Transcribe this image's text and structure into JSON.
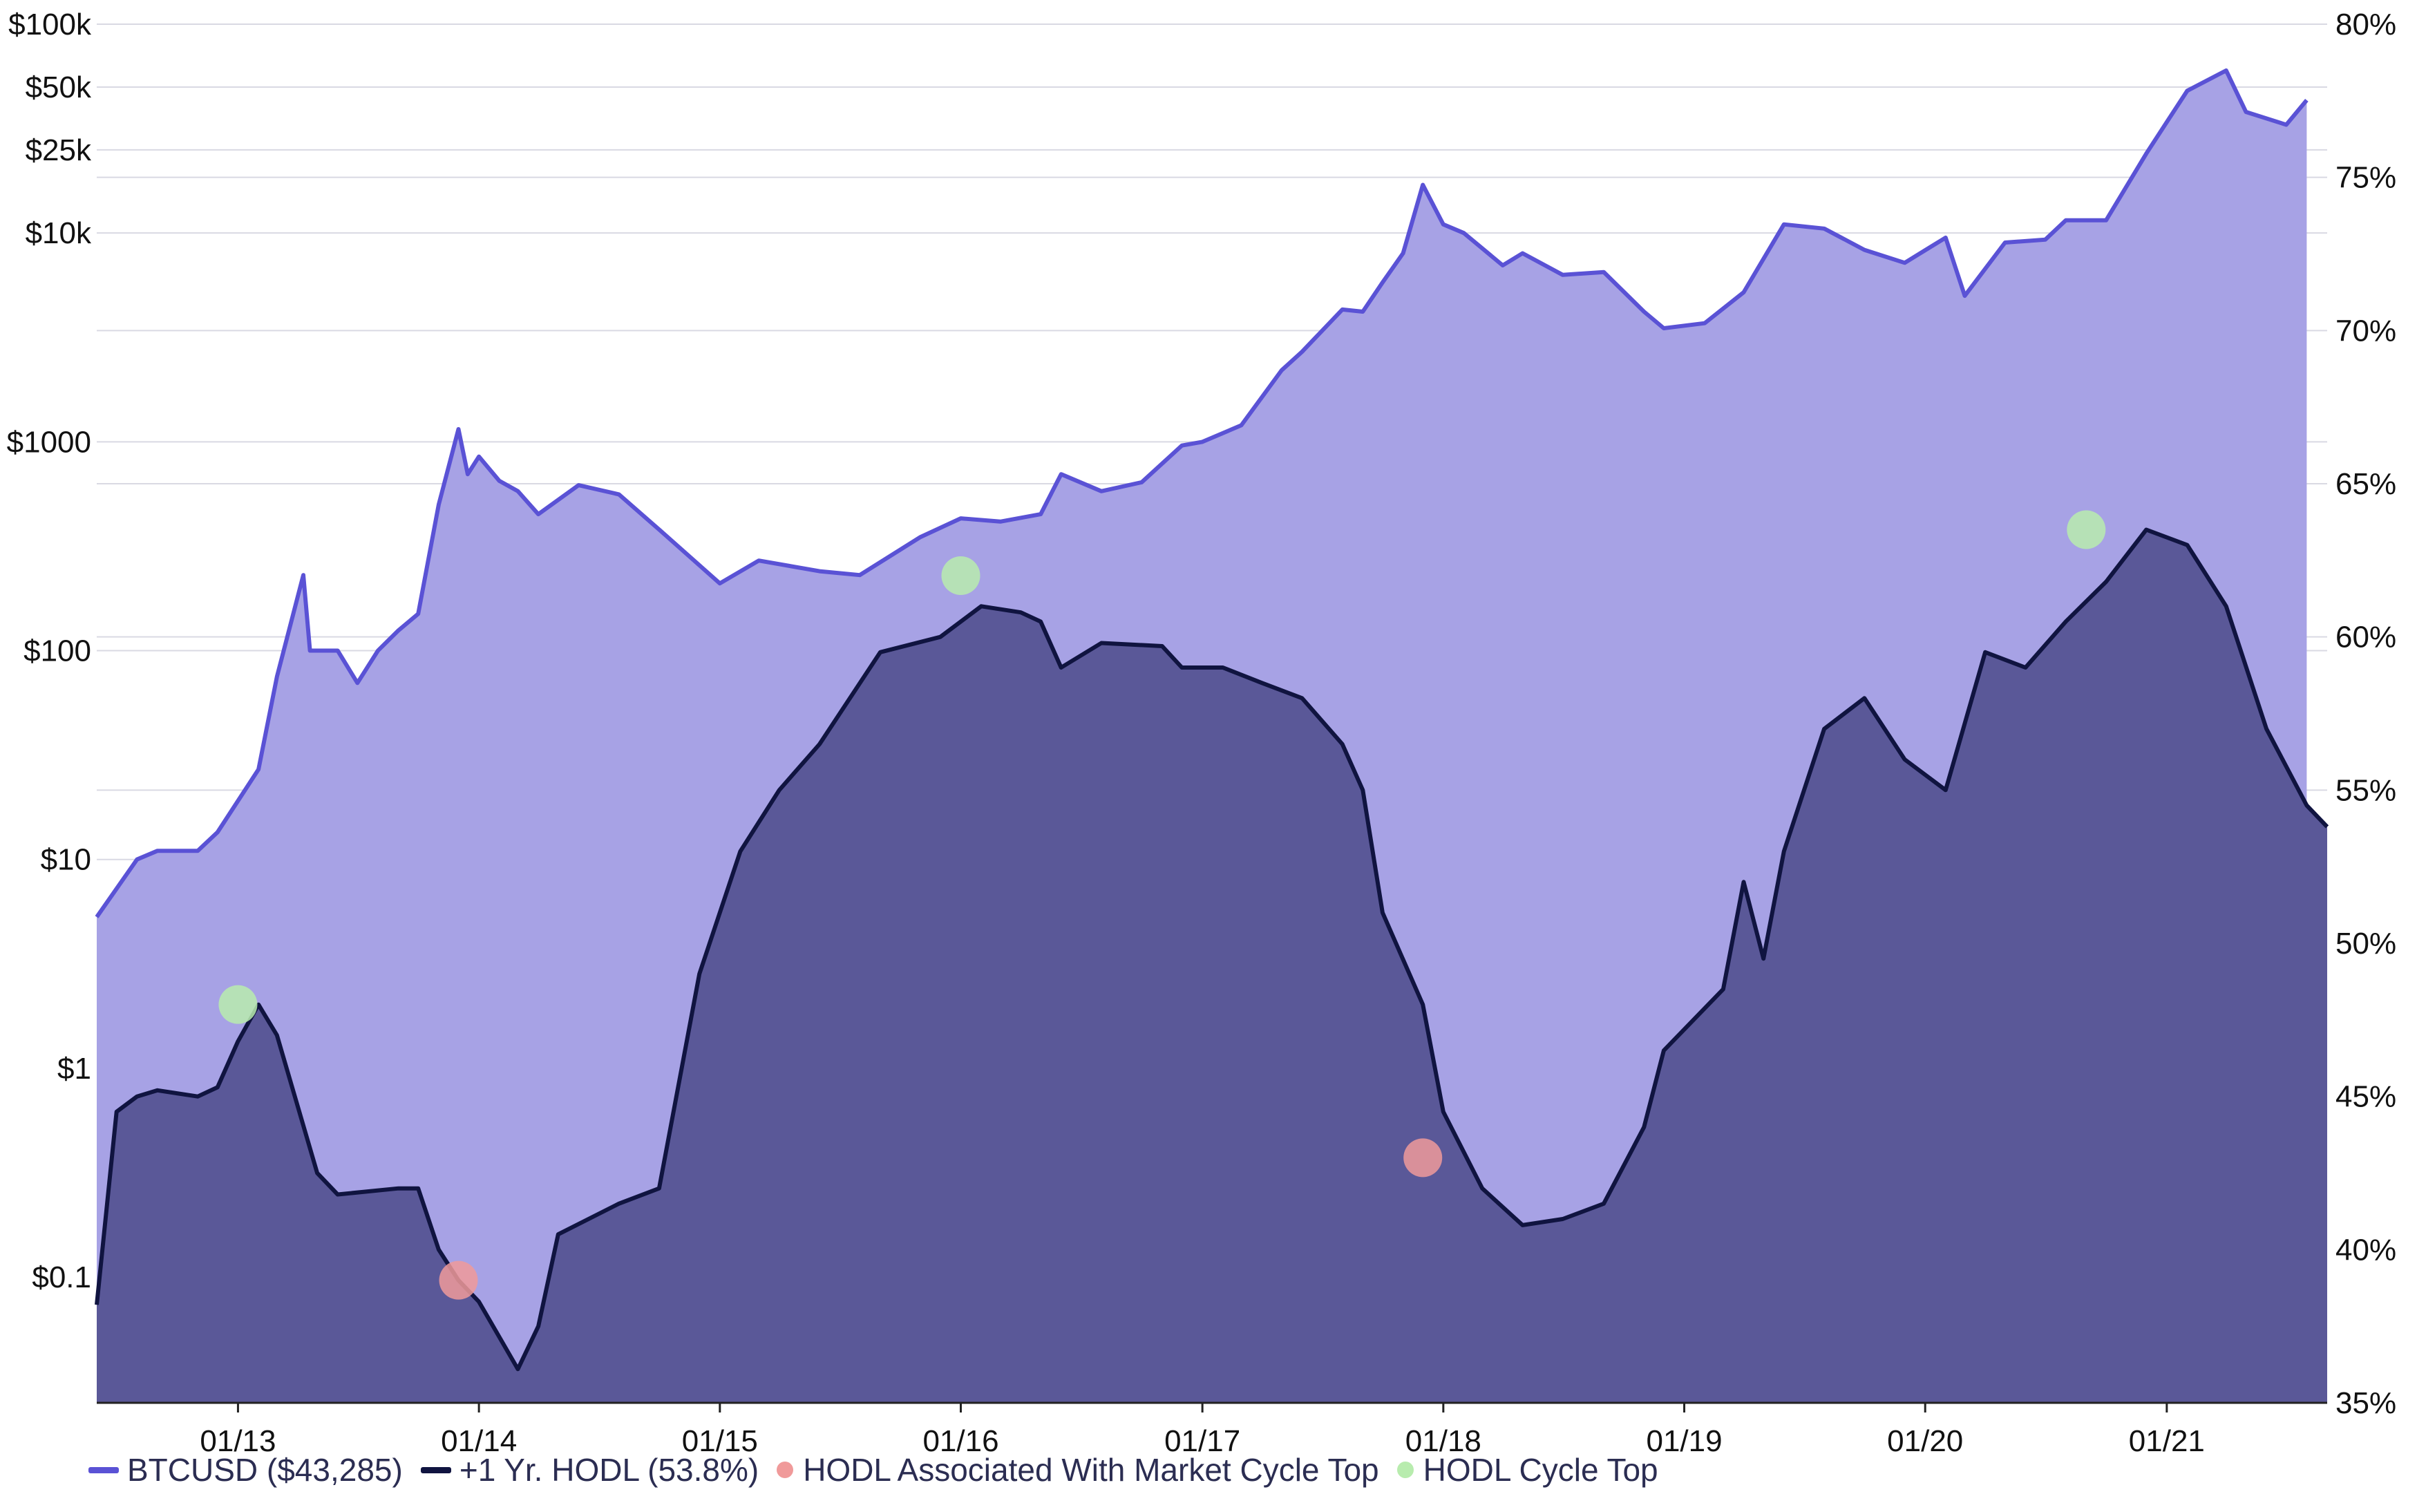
{
  "chart_data": {
    "type": "area",
    "x_ticks": [
      "01/13",
      "01/14",
      "01/15",
      "01/16",
      "01/17",
      "01/18",
      "01/19",
      "01/20",
      "01/21"
    ],
    "y_left": {
      "scale": "log",
      "range": [
        0.025,
        100000
      ],
      "ticks": [
        0.1,
        1,
        10,
        100,
        1000,
        10000,
        25000,
        50000,
        100000
      ],
      "tick_labels": [
        "$0.1",
        "$1",
        "$10",
        "$100",
        "$1000",
        "$10k",
        "$25k",
        "$50k",
        "$100k"
      ]
    },
    "y_right": {
      "scale": "linear",
      "range": [
        35,
        80
      ],
      "ticks": [
        35,
        40,
        45,
        50,
        55,
        60,
        65,
        70,
        75,
        80
      ],
      "tick_labels": [
        "35%",
        "40%",
        "45%",
        "50%",
        "55%",
        "60%",
        "65%",
        "70%",
        "75%",
        "80%"
      ]
    },
    "grid": true,
    "legend_position": "bottom-left",
    "series": [
      {
        "name": "BTCUSD ($43,285)",
        "axis": "left",
        "color": "#5a52d5",
        "fill": "#a7a2e5",
        "points": [
          [
            "2012-06",
            5.3
          ],
          [
            "2012-08",
            10
          ],
          [
            "2012-09",
            11
          ],
          [
            "2012-11",
            11
          ],
          [
            "2012-12",
            13.5
          ],
          [
            "2013-02",
            27
          ],
          [
            "2013-03",
            75
          ],
          [
            "2013-04-10",
            230
          ],
          [
            "2013-04-20",
            100
          ],
          [
            "2013-06",
            100
          ],
          [
            "2013-07",
            70
          ],
          [
            "2013-08",
            100
          ],
          [
            "2013-09",
            125
          ],
          [
            "2013-10",
            150
          ],
          [
            "2013-11",
            500
          ],
          [
            "2013-12-01",
            1150
          ],
          [
            "2013-12-15",
            700
          ],
          [
            "2014-01",
            850
          ],
          [
            "2014-02",
            650
          ],
          [
            "2014-03",
            580
          ],
          [
            "2014-04",
            450
          ],
          [
            "2014-06",
            620
          ],
          [
            "2014-08",
            560
          ],
          [
            "2014-10",
            380
          ],
          [
            "2015-01",
            210
          ],
          [
            "2015-03",
            270
          ],
          [
            "2015-06",
            240
          ],
          [
            "2015-08",
            230
          ],
          [
            "2015-11",
            350
          ],
          [
            "2016-01",
            430
          ],
          [
            "2016-03",
            415
          ],
          [
            "2016-05",
            450
          ],
          [
            "2016-06",
            700
          ],
          [
            "2016-08",
            580
          ],
          [
            "2016-10",
            640
          ],
          [
            "2016-12",
            960
          ],
          [
            "2017-01",
            1000
          ],
          [
            "2017-03",
            1200
          ],
          [
            "2017-05",
            2200
          ],
          [
            "2017-06",
            2700
          ],
          [
            "2017-08",
            4300
          ],
          [
            "2017-09",
            4200
          ],
          [
            "2017-10",
            5800
          ],
          [
            "2017-11",
            8000
          ],
          [
            "2017-12",
            17000
          ],
          [
            "2018-01",
            11000
          ],
          [
            "2018-02",
            10000
          ],
          [
            "2018-04",
            7000
          ],
          [
            "2018-05",
            8000
          ],
          [
            "2018-07",
            6300
          ],
          [
            "2018-09",
            6500
          ],
          [
            "2018-11",
            4200
          ],
          [
            "2018-12",
            3500
          ],
          [
            "2019-02",
            3700
          ],
          [
            "2019-04",
            5200
          ],
          [
            "2019-06",
            11000
          ],
          [
            "2019-08",
            10500
          ],
          [
            "2019-10",
            8300
          ],
          [
            "2019-12",
            7200
          ],
          [
            "2020-02",
            9500
          ],
          [
            "2020-03",
            5000
          ],
          [
            "2020-05",
            9000
          ],
          [
            "2020-07",
            9300
          ],
          [
            "2020-08",
            11500
          ],
          [
            "2020-10",
            11500
          ],
          [
            "2020-12",
            24000
          ],
          [
            "2021-01",
            34000
          ],
          [
            "2021-02",
            48000
          ],
          [
            "2021-04",
            60000
          ],
          [
            "2021-05",
            38000
          ],
          [
            "2021-07",
            33000
          ],
          [
            "2021-08",
            43285
          ]
        ]
      },
      {
        "name": "+1 Yr. HODL (53.8%)",
        "axis": "right",
        "color": "#101440",
        "fill": "#5a5898",
        "points": [
          [
            "2012-06",
            38.2
          ],
          [
            "2012-07",
            44.5
          ],
          [
            "2012-08",
            45
          ],
          [
            "2012-09",
            45.2
          ],
          [
            "2012-11",
            45
          ],
          [
            "2012-12",
            45.3
          ],
          [
            "2013-01",
            46.8
          ],
          [
            "2013-02",
            48
          ],
          [
            "2013-03",
            47
          ],
          [
            "2013-05",
            42.5
          ],
          [
            "2013-06",
            41.8
          ],
          [
            "2013-09",
            42
          ],
          [
            "2013-10",
            42
          ],
          [
            "2013-11",
            40
          ],
          [
            "2013-12",
            39
          ],
          [
            "2014-01",
            38.3
          ],
          [
            "2014-03",
            36.1
          ],
          [
            "2014-04",
            37.5
          ],
          [
            "2014-05",
            40.5
          ],
          [
            "2014-08",
            41.5
          ],
          [
            "2014-10",
            42
          ],
          [
            "2014-12",
            49
          ],
          [
            "2015-02",
            53
          ],
          [
            "2015-04",
            55
          ],
          [
            "2015-06",
            56.5
          ],
          [
            "2015-09",
            59.5
          ],
          [
            "2015-12",
            60
          ],
          [
            "2016-02",
            61
          ],
          [
            "2016-04",
            60.8
          ],
          [
            "2016-05",
            60.5
          ],
          [
            "2016-06",
            59
          ],
          [
            "2016-08",
            59.8
          ],
          [
            "2016-11",
            59.7
          ],
          [
            "2016-12",
            59
          ],
          [
            "2017-02",
            59
          ],
          [
            "2017-04",
            58.5
          ],
          [
            "2017-06",
            58
          ],
          [
            "2017-08",
            56.5
          ],
          [
            "2017-09",
            55
          ],
          [
            "2017-10",
            51
          ],
          [
            "2017-12",
            48
          ],
          [
            "2018-01",
            44.5
          ],
          [
            "2018-03",
            42
          ],
          [
            "2018-05",
            40.8
          ],
          [
            "2018-07",
            41
          ],
          [
            "2018-09",
            41.5
          ],
          [
            "2018-11",
            44
          ],
          [
            "2018-12",
            46.5
          ],
          [
            "2019-03",
            48.5
          ],
          [
            "2019-04",
            52
          ],
          [
            "2019-05",
            49.5
          ],
          [
            "2019-06",
            53
          ],
          [
            "2019-08",
            57
          ],
          [
            "2019-10",
            58
          ],
          [
            "2019-12",
            56
          ],
          [
            "2020-02",
            55
          ],
          [
            "2020-04",
            59.5
          ],
          [
            "2020-06",
            59
          ],
          [
            "2020-08",
            60.5
          ],
          [
            "2020-10",
            61.8
          ],
          [
            "2020-12",
            63.5
          ],
          [
            "2021-02",
            63
          ],
          [
            "2021-04",
            61
          ],
          [
            "2021-06",
            57
          ],
          [
            "2021-08",
            54.5
          ],
          [
            "2021-09",
            53.8
          ]
        ]
      }
    ],
    "markers": [
      {
        "name": "HODL Associated With Market Cycle Top",
        "color": "#f09a9a",
        "points": [
          [
            "2013-12",
            39
          ],
          [
            "2017-12",
            43
          ]
        ]
      },
      {
        "name": "HODL Cycle Top",
        "color": "#b8ecae",
        "points": [
          [
            "2013-01",
            48
          ],
          [
            "2016-01",
            62
          ],
          [
            "2020-09",
            63.5
          ]
        ]
      }
    ]
  }
}
